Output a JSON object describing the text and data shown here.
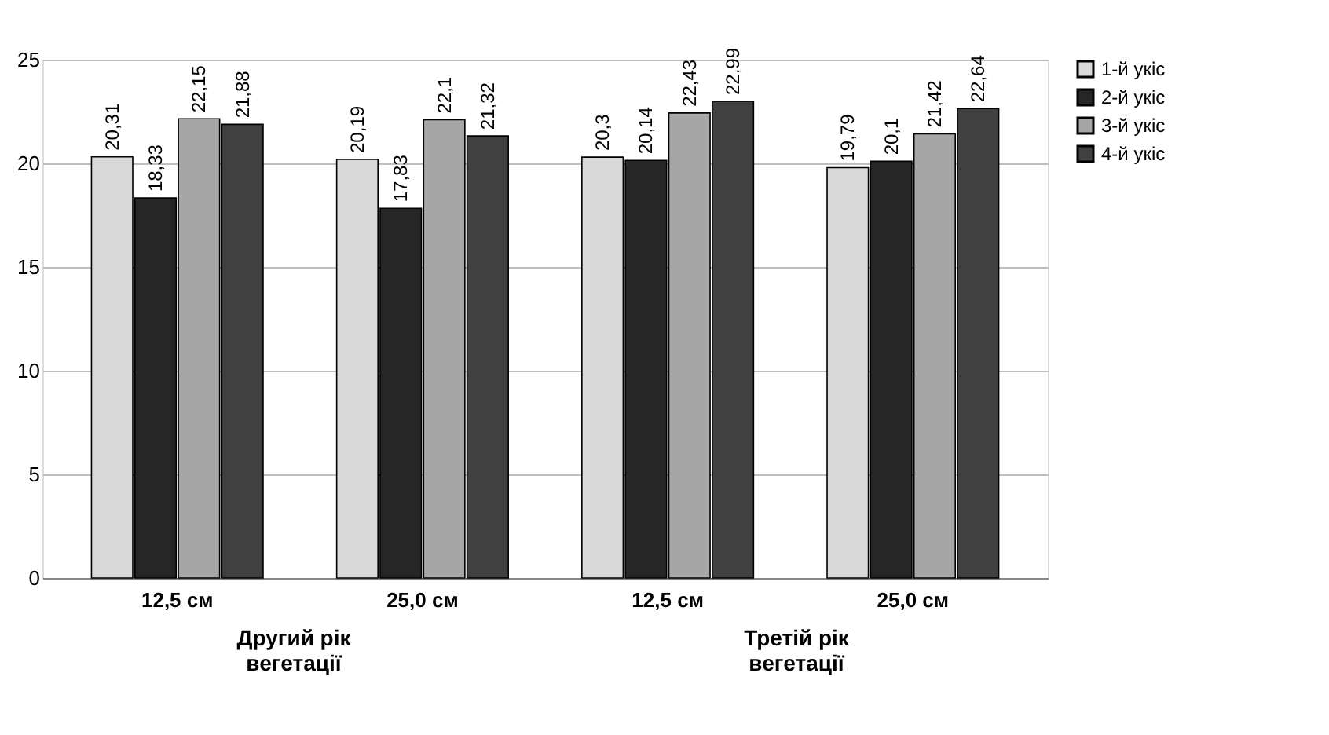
{
  "chart_data": {
    "type": "bar",
    "categories": [
      "12,5 см",
      "25,0 см",
      "12,5 см",
      "25,0 см"
    ],
    "series": [
      {
        "name": "1-й укіс",
        "color": "#d9d9d9",
        "values": [
          20.31,
          20.19,
          20.3,
          19.79
        ],
        "value_labels": [
          "20,31",
          "20,19",
          "20,3",
          "19,79"
        ]
      },
      {
        "name": "2-й укіс",
        "color": "#262626",
        "values": [
          18.33,
          17.83,
          20.14,
          20.1
        ],
        "value_labels": [
          "18,33",
          "17,83",
          "20,14",
          "20,1"
        ]
      },
      {
        "name": "3-й укіс",
        "color": "#a6a6a6",
        "values": [
          22.15,
          22.1,
          22.43,
          21.42
        ],
        "value_labels": [
          "22,15",
          "22,1",
          "22,43",
          "21,42"
        ]
      },
      {
        "name": "4-й укіс",
        "color": "#404040",
        "values": [
          21.88,
          21.32,
          22.99,
          22.64
        ],
        "value_labels": [
          "21,88",
          "21,32",
          "22,99",
          "22,64"
        ]
      }
    ],
    "annotations": [
      "Другий рік\nвегетації",
      "Третій рік\nвегетації"
    ],
    "ylim": [
      0,
      25
    ],
    "yticks": [
      0,
      5,
      10,
      15,
      20,
      25
    ],
    "grid": "y",
    "legend": "right"
  }
}
